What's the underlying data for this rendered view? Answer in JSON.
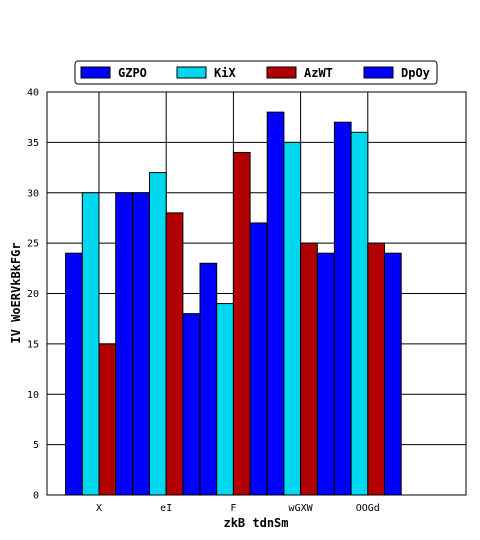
{
  "chart_data": {
    "type": "bar",
    "title": "",
    "xlabel": "zkB tdnSm",
    "ylabel": "IV WoERVkBkFGr",
    "ylim": [
      0,
      40
    ],
    "yticks": [
      "0",
      "5",
      "10",
      "15",
      "20",
      "25",
      "30",
      "35",
      "40"
    ],
    "categories": [
      "X",
      "eI",
      "F",
      "wGXW",
      "OOGd"
    ],
    "grid": true,
    "legend_position": "top-center",
    "series": [
      {
        "name": "GZPO",
        "color": "#0000ff",
        "values": [
          24,
          30,
          23,
          38,
          37
        ]
      },
      {
        "name": "KiX",
        "color": "#00d8f0",
        "values": [
          30,
          32,
          19,
          35,
          36
        ]
      },
      {
        "name": "AzWT",
        "color": "#b00000",
        "values": [
          15,
          28,
          34,
          25,
          25
        ]
      },
      {
        "name": "DpOy",
        "color": "#0000ff",
        "values": [
          30,
          18,
          27,
          24,
          24
        ]
      }
    ]
  }
}
